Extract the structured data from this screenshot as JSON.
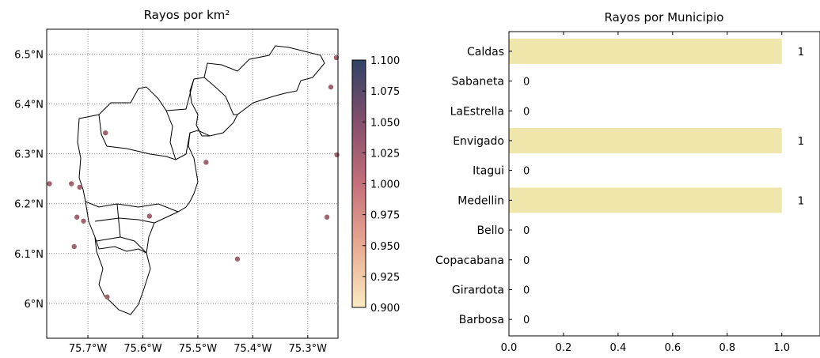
{
  "chart_data": [
    {
      "type": "scatter",
      "title": "Rayos por km²",
      "xlabel": "",
      "ylabel": "",
      "xlim": [
        -75.775,
        -75.245
      ],
      "ylim": [
        5.93,
        6.55
      ],
      "xticks": [
        {
          "value": -75.7,
          "label": "75.7°W"
        },
        {
          "value": -75.6,
          "label": "75.6°W"
        },
        {
          "value": -75.5,
          "label": "75.5°W"
        },
        {
          "value": -75.4,
          "label": "75.4°W"
        },
        {
          "value": -75.3,
          "label": "75.3°W"
        }
      ],
      "yticks": [
        {
          "value": 6.0,
          "label": "6°N"
        },
        {
          "value": 6.1,
          "label": "6.1°N"
        },
        {
          "value": 6.2,
          "label": "6.2°N"
        },
        {
          "value": 6.3,
          "label": "6.3°N"
        },
        {
          "value": 6.4,
          "label": "6.4°N"
        },
        {
          "value": 6.5,
          "label": "6.5°N"
        }
      ],
      "grid": true,
      "points": [
        {
          "lon": -75.77,
          "lat": 6.24
        },
        {
          "lon": -75.73,
          "lat": 6.24
        },
        {
          "lon": -75.715,
          "lat": 6.233
        },
        {
          "lon": -75.72,
          "lat": 6.173
        },
        {
          "lon": -75.708,
          "lat": 6.165
        },
        {
          "lon": -75.725,
          "lat": 6.114
        },
        {
          "lon": -75.668,
          "lat": 6.342
        },
        {
          "lon": -75.665,
          "lat": 6.013
        },
        {
          "lon": -75.588,
          "lat": 6.175
        },
        {
          "lon": -75.485,
          "lat": 6.283
        },
        {
          "lon": -75.428,
          "lat": 6.089
        },
        {
          "lon": -75.265,
          "lat": 6.173
        },
        {
          "lon": -75.258,
          "lat": 6.434
        },
        {
          "lon": -75.248,
          "lat": 6.493
        },
        {
          "lon": -75.247,
          "lat": 6.298
        }
      ],
      "point_color": "#a06470",
      "colorbar": {
        "min": 0.9,
        "max": 1.1,
        "ticks": [
          "0.900",
          "0.925",
          "0.950",
          "0.975",
          "1.000",
          "1.025",
          "1.050",
          "1.075",
          "1.100"
        ],
        "colors": [
          "#faebc2",
          "#e8aa92",
          "#c4707a",
          "#844f6c",
          "#2f4366"
        ]
      }
    },
    {
      "type": "bar",
      "orientation": "horizontal",
      "title": "Rayos por Municipio",
      "xlabel": "",
      "ylabel": "",
      "categories": [
        "Caldas",
        "Sabaneta",
        "LaEstrella",
        "Envigado",
        "Itagui",
        "Medellin",
        "Bello",
        "Copacabana",
        "Girardota",
        "Barbosa"
      ],
      "values": [
        1,
        0,
        0,
        1,
        0,
        1,
        0,
        0,
        0,
        0
      ],
      "value_labels": [
        "1",
        "0",
        "0",
        "1",
        "0",
        "1",
        "0",
        "0",
        "0",
        "0"
      ],
      "xlim": [
        0,
        1.14
      ],
      "xticks": [
        "0.0",
        "0.2",
        "0.4",
        "0.6",
        "0.8",
        "1.0"
      ],
      "bar_color": "#eee6ab"
    }
  ]
}
